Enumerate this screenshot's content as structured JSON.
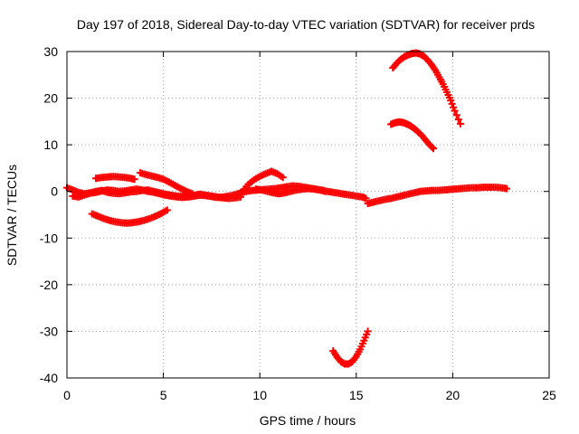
{
  "chart_data": {
    "type": "scatter",
    "title": "Day 197 of 2018, Sidereal Day-to-day VTEC variation (SDTVAR) for receiver prds",
    "xlabel": "GPS time / hours",
    "ylabel": "SDTVAR / TECUs",
    "xlim": [
      0,
      25
    ],
    "ylim": [
      -40,
      30
    ],
    "xticks": [
      0,
      5,
      10,
      15,
      20,
      25
    ],
    "yticks": [
      -40,
      -30,
      -20,
      -10,
      0,
      10,
      20,
      30
    ],
    "xtick_labels": [
      "0",
      "5",
      "10",
      "15",
      "20",
      "25"
    ],
    "ytick_labels": [
      "-40",
      "-30",
      "-20",
      "-10",
      "0",
      "10",
      "20",
      "30"
    ],
    "grid": true,
    "legend": "none",
    "marker": "plus",
    "color": "#ff0000",
    "series": [
      {
        "x": [
          0.0,
          0.3,
          0.6,
          0.9,
          1.2,
          1.5,
          1.8,
          2.1,
          2.4,
          2.7,
          3.0,
          3.3,
          3.6,
          3.9,
          4.2,
          4.5,
          4.8,
          5.1,
          5.4,
          5.7,
          6.0,
          6.3,
          6.6,
          6.9,
          7.2,
          7.5,
          7.8,
          8.1,
          8.4,
          8.7,
          9.0,
          9.3,
          9.6,
          9.9,
          10.2,
          10.5,
          10.8,
          11.1,
          11.4,
          11.7,
          12.0,
          12.3,
          12.6,
          12.9,
          13.2,
          13.5,
          13.8,
          14.1,
          14.4,
          14.7,
          15.0,
          15.3,
          15.5
        ],
        "y": [
          0.8,
          0.3,
          -0.2,
          -0.5,
          -0.3,
          0.0,
          0.2,
          -0.2,
          -0.4,
          -0.5,
          -0.3,
          -0.1,
          0.0,
          0.2,
          0.3,
          0.0,
          -0.3,
          -0.6,
          -0.8,
          -1.0,
          -1.1,
          -1.2,
          -1.0,
          -0.8,
          -0.9,
          -1.1,
          -1.3,
          -1.2,
          -1.0,
          -0.7,
          -0.3,
          0.0,
          0.2,
          0.3,
          0.4,
          0.5,
          0.6,
          0.8,
          1.0,
          1.2,
          1.1,
          0.9,
          0.7,
          0.5,
          0.3,
          0.0,
          -0.2,
          -0.4,
          -0.6,
          -0.8,
          -1.0,
          -1.2,
          -1.5
        ]
      },
      {
        "x": [
          0.3,
          0.6,
          0.9,
          1.2,
          1.5,
          1.8,
          2.1,
          2.4,
          2.7,
          3.0,
          3.3,
          3.6,
          3.9,
          4.2,
          4.5,
          4.8,
          5.1,
          5.4,
          5.7,
          6.0,
          6.3,
          6.6,
          6.9,
          7.2,
          7.5,
          7.8,
          8.1,
          8.4,
          8.7,
          9.0
        ],
        "y": [
          -1.0,
          -1.2,
          -0.8,
          -0.4,
          -0.2,
          0.1,
          0.3,
          0.2,
          0.0,
          0.1,
          0.3,
          0.5,
          0.3,
          0.0,
          -0.2,
          -0.5,
          -0.8,
          -1.0,
          -1.2,
          -1.3,
          -1.1,
          -0.8,
          -0.6,
          -0.8,
          -1.0,
          -1.2,
          -1.4,
          -1.5,
          -1.4,
          -1.2
        ]
      },
      {
        "x": [
          1.5,
          1.8,
          2.1,
          2.4,
          2.7,
          3.0,
          3.3,
          3.5
        ],
        "y": [
          2.8,
          3.0,
          3.1,
          3.2,
          3.1,
          3.0,
          2.8,
          2.6
        ]
      },
      {
        "x": [
          3.8,
          4.1,
          4.4,
          4.7,
          5.0,
          5.3,
          5.6,
          5.9,
          6.2,
          6.5
        ],
        "y": [
          4.0,
          3.6,
          3.3,
          3.0,
          2.6,
          2.0,
          1.3,
          0.6,
          0.0,
          -0.5
        ]
      },
      {
        "x": [
          1.3,
          1.6,
          1.9,
          2.2,
          2.5,
          2.8,
          3.1,
          3.4,
          3.7,
          4.0,
          4.3,
          4.6,
          4.9,
          5.2
        ],
        "y": [
          -4.8,
          -5.3,
          -5.8,
          -6.2,
          -6.5,
          -6.7,
          -6.8,
          -6.7,
          -6.5,
          -6.2,
          -5.8,
          -5.3,
          -4.7,
          -4.0
        ]
      },
      {
        "x": [
          8.8,
          9.1,
          9.4,
          9.7,
          10.0,
          10.3,
          10.6,
          10.9,
          11.2
        ],
        "y": [
          -1.0,
          0.0,
          1.5,
          2.5,
          3.2,
          3.8,
          4.3,
          3.8,
          3.0
        ]
      },
      {
        "x": [
          9.8,
          10.1,
          10.4,
          10.7,
          11.0,
          11.3,
          11.6,
          11.9,
          12.2,
          12.5,
          12.8,
          13.1,
          13.4
        ],
        "y": [
          0.5,
          0.3,
          0.0,
          -0.3,
          -0.5,
          -0.3,
          0.0,
          0.3,
          0.5,
          0.6,
          0.5,
          0.3,
          0.0
        ]
      },
      {
        "x": [
          15.6,
          15.9,
          16.2,
          16.5,
          16.8,
          17.1,
          17.4,
          17.7,
          18.0,
          18.3,
          18.6,
          18.9,
          19.2,
          19.5,
          19.8,
          20.1,
          20.4,
          20.7,
          21.0,
          21.3,
          21.6,
          21.9,
          22.2,
          22.5,
          22.8
        ],
        "y": [
          -2.6,
          -2.3,
          -2.0,
          -1.7,
          -1.5,
          -1.2,
          -0.9,
          -0.6,
          -0.3,
          0.0,
          0.1,
          0.2,
          0.2,
          0.3,
          0.4,
          0.5,
          0.6,
          0.7,
          0.8,
          0.8,
          0.9,
          0.9,
          0.9,
          0.8,
          0.6
        ]
      },
      {
        "x": [
          16.8,
          17.0,
          17.2,
          17.4,
          17.6,
          17.8,
          18.0,
          18.2,
          18.4,
          18.6,
          18.8,
          19.0
        ],
        "y": [
          14.4,
          14.7,
          14.9,
          14.8,
          14.5,
          14.1,
          13.5,
          12.8,
          12.0,
          11.0,
          10.0,
          9.2
        ]
      },
      {
        "x": [
          16.9,
          17.1,
          17.3,
          17.5,
          17.7,
          17.9,
          18.1,
          18.3,
          18.5,
          18.7,
          18.9,
          19.1,
          19.3,
          19.5,
          19.7,
          19.9,
          20.1,
          20.4
        ],
        "y": [
          26.5,
          27.5,
          28.3,
          28.9,
          29.3,
          29.6,
          29.7,
          29.5,
          29.0,
          28.2,
          27.2,
          26.0,
          24.5,
          23.0,
          21.3,
          19.5,
          17.3,
          14.5
        ]
      },
      {
        "x": [
          13.8,
          14.0,
          14.2,
          14.4,
          14.6,
          14.8,
          15.0,
          15.2,
          15.4,
          15.6
        ],
        "y": [
          -34.2,
          -35.5,
          -36.5,
          -37.0,
          -37.0,
          -36.5,
          -35.4,
          -33.9,
          -32.0,
          -30.0
        ]
      }
    ]
  }
}
